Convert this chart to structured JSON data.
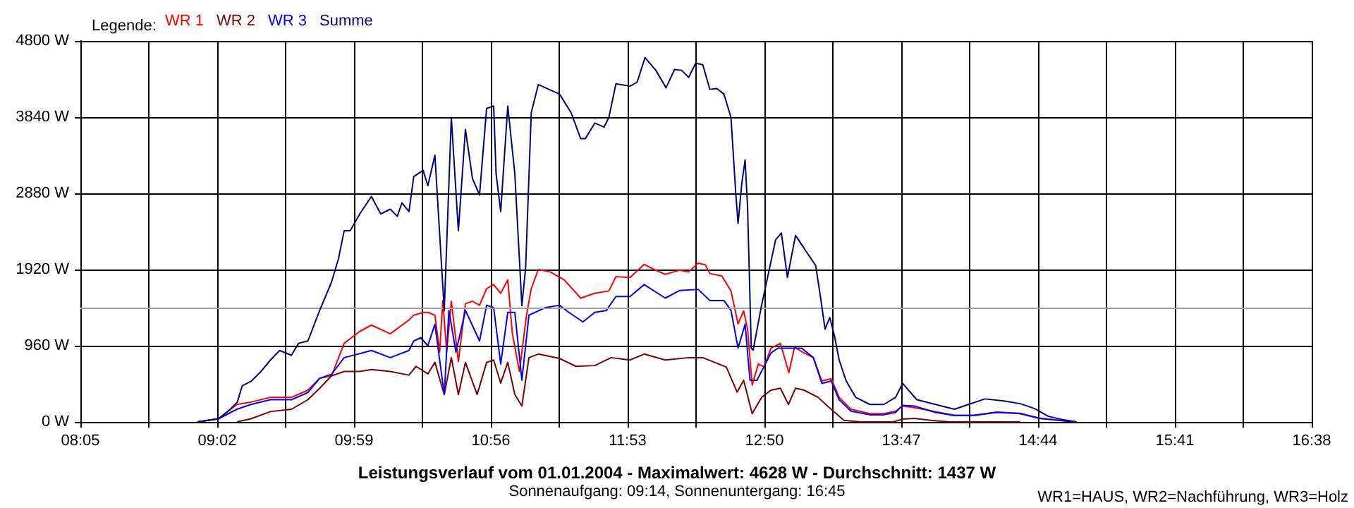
{
  "chart_data": {
    "type": "line",
    "title": "Leistungsverlauf vom 01.01.2004 - Maximalwert: 4628 W - Durchschnitt: 1437 W",
    "subtitle": "Sonnenaufgang: 09:14, Sonnenuntergang: 16:45",
    "annotations": [
      "WR1=HAUS, WR2=Nachführung, WR3=Holz"
    ],
    "legend_title": "Legende:",
    "legend": "top left",
    "grid": true,
    "marker": "none",
    "line_style": "solid",
    "xlim": [
      8.0833,
      16.6333
    ],
    "xticks": [
      {
        "value": 8.0833,
        "label": "08:05"
      },
      {
        "value": 8.5583,
        "label": null
      },
      {
        "value": 9.0333,
        "label": "09:02"
      },
      {
        "value": 9.5083,
        "label": null
      },
      {
        "value": 9.9833,
        "label": "09:59"
      },
      {
        "value": 10.4583,
        "label": null
      },
      {
        "value": 10.9333,
        "label": "10:56"
      },
      {
        "value": 11.4083,
        "label": null
      },
      {
        "value": 11.8833,
        "label": "11:53"
      },
      {
        "value": 12.3583,
        "label": null
      },
      {
        "value": 12.8333,
        "label": "12:50"
      },
      {
        "value": 13.3083,
        "label": null
      },
      {
        "value": 13.7833,
        "label": "13:47"
      },
      {
        "value": 14.2583,
        "label": null
      },
      {
        "value": 14.7333,
        "label": "14:44"
      },
      {
        "value": 15.2083,
        "label": null
      },
      {
        "value": 15.6833,
        "label": "15:41"
      },
      {
        "value": 16.1583,
        "label": null
      },
      {
        "value": 16.6333,
        "label": "16:38"
      }
    ],
    "ylim": [
      0,
      4800
    ],
    "yticks": [
      {
        "value": 0,
        "label": "0 W"
      },
      {
        "value": 960,
        "label": "960 W"
      },
      {
        "value": 1920,
        "label": "1920 W"
      },
      {
        "value": 2880,
        "label": "2880 W"
      },
      {
        "value": 3840,
        "label": "3840 W"
      },
      {
        "value": 4800,
        "label": "4800 W"
      }
    ],
    "ref_lines": [
      {
        "axis": "y",
        "value": 1437,
        "color": "#a0a0a0"
      }
    ],
    "series": [
      {
        "name": "WR 1",
        "color": "#ff0000",
        "x": [
          8.896,
          9.043,
          9.17,
          9.268,
          9.403,
          9.549,
          9.663,
          9.745,
          9.827,
          9.915,
          10.023,
          10.104,
          10.235,
          10.365,
          10.398,
          10.463,
          10.496,
          10.545,
          10.578,
          10.6,
          10.627,
          10.659,
          10.708,
          10.757,
          10.806,
          10.855,
          10.904,
          10.953,
          11.002,
          11.051,
          11.083,
          11.132,
          11.181,
          11.214,
          11.263,
          11.345,
          11.443,
          11.557,
          11.655,
          11.753,
          11.802,
          11.9,
          11.998,
          12.079,
          12.145,
          12.243,
          12.307,
          12.373,
          12.422,
          12.454,
          12.537,
          12.601,
          12.65,
          12.689,
          12.716,
          12.748,
          12.791,
          12.83,
          12.879,
          12.944,
          13.003,
          13.042,
          13.108,
          13.173,
          13.232,
          13.297,
          13.352,
          13.434,
          13.565,
          13.663,
          13.744,
          13.793,
          13.874,
          14.021,
          14.153,
          14.283,
          14.447,
          14.609,
          14.74,
          14.903,
          15.001
        ],
        "values": [
          0,
          40,
          220,
          250,
          310,
          310,
          400,
          550,
          580,
          990,
          1140,
          1220,
          1110,
          1285,
          1345,
          1380,
          1380,
          1345,
          880,
          1530,
          880,
          1520,
          760,
          1490,
          1520,
          1470,
          1680,
          1730,
          1620,
          1790,
          1110,
          635,
          1345,
          1680,
          1920,
          1890,
          1790,
          1560,
          1620,
          1650,
          1830,
          1820,
          1985,
          1910,
          1860,
          1910,
          1890,
          2000,
          1980,
          1870,
          1840,
          1650,
          1235,
          1400,
          1170,
          465,
          730,
          695,
          930,
          990,
          620,
          940,
          870,
          810,
          515,
          545,
          310,
          160,
          105,
          105,
          135,
          200,
          180,
          130,
          85,
          85,
          125,
          110,
          50,
          15,
          0
        ]
      },
      {
        "name": "WR 2",
        "color": "#800000",
        "x": [
          9.17,
          9.268,
          9.403,
          9.549,
          9.663,
          9.745,
          9.827,
          9.915,
          10.023,
          10.104,
          10.235,
          10.365,
          10.414,
          10.496,
          10.545,
          10.61,
          10.659,
          10.708,
          10.757,
          10.838,
          10.904,
          10.953,
          11.002,
          11.051,
          11.1,
          11.149,
          11.198,
          11.263,
          11.41,
          11.524,
          11.655,
          11.769,
          11.9,
          11.998,
          12.145,
          12.307,
          12.405,
          12.488,
          12.569,
          12.644,
          12.689,
          12.748,
          12.814,
          12.879,
          12.944,
          13.0,
          13.049,
          13.108,
          13.206,
          13.271,
          13.385,
          13.5,
          13.728,
          13.793,
          13.874,
          13.989,
          14.119,
          14.609
        ],
        "values": [
          0,
          40,
          130,
          160,
          280,
          425,
          580,
          635,
          635,
          660,
          635,
          590,
          700,
          605,
          750,
          345,
          810,
          345,
          750,
          345,
          750,
          780,
          490,
          750,
          345,
          200,
          810,
          855,
          800,
          700,
          710,
          810,
          780,
          855,
          780,
          810,
          810,
          750,
          690,
          375,
          525,
          105,
          310,
          400,
          425,
          220,
          425,
          400,
          310,
          200,
          20,
          0,
          0,
          35,
          45,
          20,
          0,
          0
        ]
      },
      {
        "name": "WR 3",
        "color": "#0000ff",
        "x": [
          8.896,
          9.043,
          9.17,
          9.268,
          9.403,
          9.549,
          9.663,
          9.745,
          9.827,
          9.915,
          10.023,
          10.104,
          10.235,
          10.365,
          10.398,
          10.447,
          10.496,
          10.545,
          10.61,
          10.642,
          10.691,
          10.757,
          10.855,
          10.904,
          10.953,
          11.002,
          11.051,
          11.1,
          11.149,
          11.198,
          11.312,
          11.41,
          11.475,
          11.573,
          11.655,
          11.736,
          11.802,
          11.9,
          11.998,
          12.145,
          12.243,
          12.373,
          12.454,
          12.552,
          12.601,
          12.65,
          12.699,
          12.733,
          12.781,
          12.83,
          12.879,
          12.928,
          13.091,
          13.173,
          13.232,
          13.297,
          13.352,
          13.434,
          13.565,
          13.663,
          13.744,
          13.793,
          13.874,
          14.021,
          14.153,
          14.283,
          14.447,
          14.609,
          14.74,
          14.903,
          15.001
        ],
        "values": [
          0,
          40,
          160,
          220,
          280,
          280,
          370,
          550,
          600,
          810,
          860,
          900,
          810,
          900,
          1020,
          1060,
          960,
          1230,
          345,
          1405,
          880,
          1405,
          1020,
          1470,
          1440,
          730,
          1380,
          1380,
          525,
          1345,
          1440,
          1470,
          1380,
          1260,
          1380,
          1405,
          1580,
          1580,
          1730,
          1560,
          1655,
          1670,
          1530,
          1530,
          1405,
          930,
          1230,
          525,
          525,
          695,
          870,
          930,
          930,
          810,
          485,
          515,
          280,
          135,
          90,
          90,
          120,
          210,
          200,
          120,
          80,
          80,
          120,
          105,
          45,
          15,
          0
        ]
      },
      {
        "name": "Summe",
        "color": "#000080",
        "x": [
          8.896,
          9.043,
          9.124,
          9.173,
          9.207,
          9.271,
          9.337,
          9.403,
          9.467,
          9.549,
          9.598,
          9.663,
          9.745,
          9.827,
          9.876,
          9.915,
          9.957,
          10.023,
          10.104,
          10.169,
          10.235,
          10.284,
          10.316,
          10.365,
          10.398,
          10.463,
          10.496,
          10.545,
          10.61,
          10.659,
          10.708,
          10.757,
          10.806,
          10.855,
          10.904,
          10.953,
          10.97,
          11.002,
          11.051,
          11.1,
          11.149,
          11.175,
          11.214,
          11.263,
          11.41,
          11.491,
          11.557,
          11.59,
          11.655,
          11.72,
          11.753,
          11.802,
          11.9,
          11.949,
          12.004,
          12.079,
          12.15,
          12.209,
          12.258,
          12.307,
          12.356,
          12.405,
          12.454,
          12.503,
          12.552,
          12.601,
          12.634,
          12.65,
          12.676,
          12.699,
          12.716,
          12.742,
          12.755,
          12.813,
          12.911,
          12.951,
          12.993,
          13.049,
          13.124,
          13.189,
          13.222,
          13.254,
          13.287,
          13.32,
          13.352,
          13.401,
          13.467,
          13.565,
          13.663,
          13.744,
          13.793,
          13.891,
          14.021,
          14.152,
          14.25,
          14.364,
          14.495,
          14.609,
          14.707,
          14.805,
          14.903,
          15.001
        ],
        "values": [
          0,
          40,
          160,
          250,
          455,
          515,
          635,
          780,
          900,
          840,
          990,
          1020,
          1405,
          1760,
          2060,
          2410,
          2410,
          2620,
          2840,
          2620,
          2680,
          2590,
          2760,
          2650,
          3090,
          3170,
          2975,
          3360,
          1405,
          3835,
          2410,
          3685,
          3065,
          2860,
          3950,
          3980,
          3125,
          2650,
          3980,
          3125,
          1465,
          1940,
          3895,
          4250,
          4130,
          3895,
          3570,
          3570,
          3765,
          3715,
          3835,
          4260,
          4230,
          4280,
          4590,
          4430,
          4210,
          4440,
          4430,
          4340,
          4520,
          4500,
          4190,
          4200,
          4130,
          3835,
          2885,
          2500,
          3005,
          3300,
          2710,
          930,
          905,
          1465,
          2295,
          2380,
          1820,
          2350,
          2145,
          1970,
          1580,
          1170,
          1315,
          1080,
          780,
          515,
          310,
          220,
          220,
          310,
          485,
          280,
          220,
          160,
          220,
          290,
          265,
          230,
          170,
          70,
          30,
          0
        ]
      }
    ]
  }
}
